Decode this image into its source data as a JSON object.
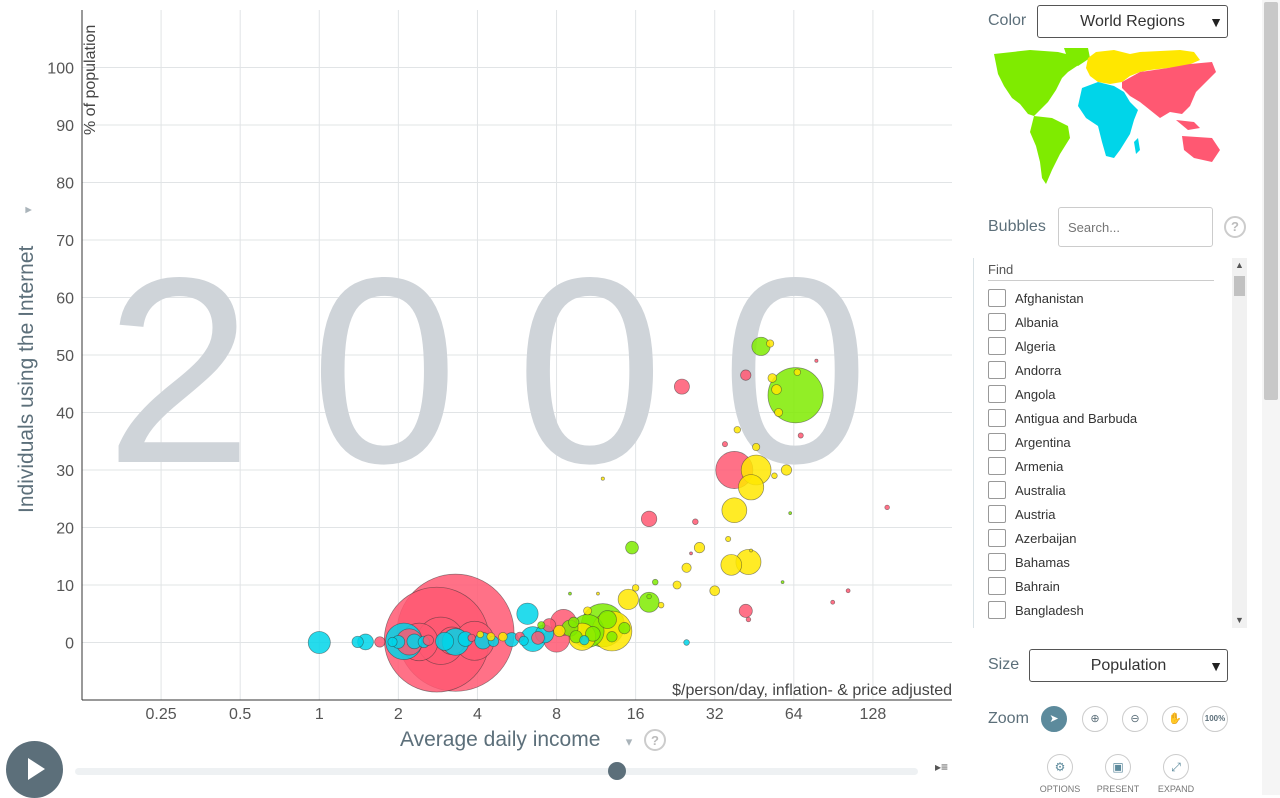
{
  "chart_data": {
    "type": "scatter",
    "year": "2000",
    "ylabel": "Individuals using the Internet",
    "yunit": "% of population",
    "xlabel": "Average daily income",
    "xunit": "$/person/day, inflation- & price adjusted",
    "xscale": "log2",
    "xlim": [
      0.125,
      256
    ],
    "ylim": [
      -10,
      110
    ],
    "xticks": [
      0.25,
      0.5,
      1,
      2,
      4,
      8,
      16,
      32,
      64,
      128
    ],
    "xticklabels": [
      "0.25",
      "0.5",
      "1",
      "2",
      "4",
      "8",
      "16",
      "32",
      "64",
      "128"
    ],
    "yticks": [
      0,
      10,
      20,
      30,
      40,
      50,
      60,
      70,
      80,
      90,
      100
    ],
    "grid": true,
    "size_by": "Population",
    "color_by": "World Regions",
    "colors": {
      "africa": "#00d5e9",
      "americas": "#7feb00",
      "asia": "#ff5872",
      "europe": "#ffe700"
    },
    "points": [
      {
        "x": 3.3,
        "y": 1.7,
        "pop": 1260,
        "region": "asia"
      },
      {
        "x": 2.8,
        "y": 0.5,
        "pop": 1010,
        "region": "asia"
      },
      {
        "x": 65,
        "y": 43,
        "pop": 280,
        "region": "americas"
      },
      {
        "x": 2.9,
        "y": 0.3,
        "pop": 205,
        "region": "asia"
      },
      {
        "x": 12,
        "y": 3,
        "pop": 172,
        "region": "americas"
      },
      {
        "x": 13,
        "y": 2,
        "pop": 146,
        "region": "europe"
      },
      {
        "x": 3.9,
        "y": 0.3,
        "pop": 140,
        "region": "asia"
      },
      {
        "x": 2.4,
        "y": 0.1,
        "pop": 130,
        "region": "asia"
      },
      {
        "x": 38,
        "y": 30,
        "pop": 127,
        "region": "asia"
      },
      {
        "x": 2.1,
        "y": 0.2,
        "pop": 123,
        "region": "africa"
      },
      {
        "x": 10.5,
        "y": 2,
        "pop": 100,
        "region": "americas"
      },
      {
        "x": 46,
        "y": 30,
        "pop": 82,
        "region": "europe"
      },
      {
        "x": 3.2,
        "y": 0.3,
        "pop": 70,
        "region": "asia"
      },
      {
        "x": 10,
        "y": 1,
        "pop": 68,
        "region": "europe"
      },
      {
        "x": 3.3,
        "y": 0.1,
        "pop": 66,
        "region": "africa"
      },
      {
        "x": 2.2,
        "y": 0.1,
        "pop": 63,
        "region": "asia"
      },
      {
        "x": 8,
        "y": 0.6,
        "pop": 63,
        "region": "asia"
      },
      {
        "x": 8.5,
        "y": 3.5,
        "pop": 62,
        "region": "asia"
      },
      {
        "x": 6.5,
        "y": 0.6,
        "pop": 57,
        "region": "africa"
      },
      {
        "x": 44,
        "y": 27,
        "pop": 59,
        "region": "europe"
      },
      {
        "x": 43,
        "y": 14,
        "pop": 58,
        "region": "europe"
      },
      {
        "x": 38,
        "y": 23,
        "pop": 57,
        "region": "europe"
      },
      {
        "x": 1,
        "y": 0,
        "pop": 45,
        "region": "africa"
      },
      {
        "x": 6.2,
        "y": 5,
        "pop": 42,
        "region": "africa"
      },
      {
        "x": 37,
        "y": 13.5,
        "pop": 40,
        "region": "europe"
      },
      {
        "x": 18,
        "y": 7,
        "pop": 37,
        "region": "americas"
      },
      {
        "x": 15,
        "y": 7.5,
        "pop": 38,
        "region": "europe"
      },
      {
        "x": 24,
        "y": 44.5,
        "pop": 21,
        "region": "asia"
      },
      {
        "x": 48,
        "y": 51.5,
        "pop": 31,
        "region": "americas"
      },
      {
        "x": 18,
        "y": 21.5,
        "pop": 22,
        "region": "asia"
      },
      {
        "x": 1.5,
        "y": 0.1,
        "pop": 23,
        "region": "africa"
      },
      {
        "x": 9,
        "y": 2.5,
        "pop": 24,
        "region": "americas"
      },
      {
        "x": 15.5,
        "y": 16.5,
        "pop": 15,
        "region": "americas"
      },
      {
        "x": 42,
        "y": 5.5,
        "pop": 16,
        "region": "asia"
      },
      {
        "x": 55,
        "y": 44,
        "pop": 9,
        "region": "europe"
      },
      {
        "x": 42,
        "y": 46.5,
        "pop": 10,
        "region": "asia"
      },
      {
        "x": 7.5,
        "y": 3,
        "pop": 16,
        "region": "asia"
      },
      {
        "x": 28,
        "y": 16.5,
        "pop": 10,
        "region": "europe"
      },
      {
        "x": 25,
        "y": 13,
        "pop": 8,
        "region": "europe"
      },
      {
        "x": 32,
        "y": 9,
        "pop": 9,
        "region": "europe"
      },
      {
        "x": 53,
        "y": 46,
        "pop": 7,
        "region": "europe"
      },
      {
        "x": 52,
        "y": 52,
        "pop": 5,
        "region": "europe"
      },
      {
        "x": 66,
        "y": 47,
        "pop": 4,
        "region": "europe"
      },
      {
        "x": 56,
        "y": 40,
        "pop": 6,
        "region": "europe"
      },
      {
        "x": 60,
        "y": 30,
        "pop": 10,
        "region": "europe"
      },
      {
        "x": 35,
        "y": 34.5,
        "pop": 2.5,
        "region": "asia"
      },
      {
        "x": 39,
        "y": 37,
        "pop": 4,
        "region": "europe"
      },
      {
        "x": 46,
        "y": 34,
        "pop": 5,
        "region": "europe"
      },
      {
        "x": 54,
        "y": 29,
        "pop": 3,
        "region": "europe"
      },
      {
        "x": 27,
        "y": 21,
        "pop": 3,
        "region": "asia"
      },
      {
        "x": 36,
        "y": 18,
        "pop": 2.5,
        "region": "europe"
      },
      {
        "x": 68,
        "y": 36,
        "pop": 2.5,
        "region": "asia"
      },
      {
        "x": 78,
        "y": 49,
        "pop": 1,
        "region": "asia"
      },
      {
        "x": 145,
        "y": 23.5,
        "pop": 2,
        "region": "asia"
      },
      {
        "x": 103,
        "y": 9,
        "pop": 1.5,
        "region": "asia"
      },
      {
        "x": 90,
        "y": 7,
        "pop": 1.5,
        "region": "asia"
      },
      {
        "x": 43,
        "y": 4,
        "pop": 2,
        "region": "asia"
      },
      {
        "x": 25,
        "y": 0,
        "pop": 3,
        "region": "africa"
      },
      {
        "x": 23,
        "y": 10,
        "pop": 6,
        "region": "europe"
      },
      {
        "x": 20,
        "y": 6.5,
        "pop": 3,
        "region": "europe"
      },
      {
        "x": 16,
        "y": 9.5,
        "pop": 4,
        "region": "europe"
      },
      {
        "x": 19,
        "y": 10.5,
        "pop": 3,
        "region": "americas"
      },
      {
        "x": 12,
        "y": 28.5,
        "pop": 1,
        "region": "europe"
      },
      {
        "x": 11.5,
        "y": 8.5,
        "pop": 0.5,
        "region": "europe"
      },
      {
        "x": 3.6,
        "y": 0.6,
        "pop": 20,
        "region": "africa"
      },
      {
        "x": 3,
        "y": 0.2,
        "pop": 30,
        "region": "africa"
      },
      {
        "x": 2.3,
        "y": 0.2,
        "pop": 20,
        "region": "africa"
      },
      {
        "x": 4.2,
        "y": 0.3,
        "pop": 25,
        "region": "africa"
      },
      {
        "x": 5.4,
        "y": 0.5,
        "pop": 18,
        "region": "africa"
      },
      {
        "x": 7.2,
        "y": 1.5,
        "pop": 30,
        "region": "africa"
      },
      {
        "x": 1.7,
        "y": 0.1,
        "pop": 10,
        "region": "asia"
      },
      {
        "x": 1.9,
        "y": 0.1,
        "pop": 8,
        "region": "africa"
      },
      {
        "x": 2.6,
        "y": 0.4,
        "pop": 10,
        "region": "asia"
      },
      {
        "x": 4.5,
        "y": 1,
        "pop": 6,
        "region": "europe"
      },
      {
        "x": 5,
        "y": 1,
        "pop": 7,
        "region": "europe"
      },
      {
        "x": 5.8,
        "y": 1,
        "pop": 8,
        "region": "asia"
      },
      {
        "x": 6.8,
        "y": 0.8,
        "pop": 15,
        "region": "asia"
      },
      {
        "x": 9.5,
        "y": 1,
        "pop": 14,
        "region": "americas"
      },
      {
        "x": 11,
        "y": 1.5,
        "pop": 20,
        "region": "americas"
      },
      {
        "x": 12.5,
        "y": 4,
        "pop": 30,
        "region": "americas"
      },
      {
        "x": 13,
        "y": 1,
        "pop": 10,
        "region": "americas"
      },
      {
        "x": 14.5,
        "y": 2.5,
        "pop": 12,
        "region": "americas"
      },
      {
        "x": 10.5,
        "y": 5.5,
        "pop": 6,
        "region": "europe"
      },
      {
        "x": 8.2,
        "y": 2,
        "pop": 12,
        "region": "europe"
      },
      {
        "x": 7,
        "y": 3,
        "pop": 5,
        "region": "americas"
      },
      {
        "x": 9.3,
        "y": 3.5,
        "pop": 10,
        "region": "americas"
      },
      {
        "x": 10.2,
        "y": 0.4,
        "pop": 8,
        "region": "africa"
      },
      {
        "x": 6,
        "y": 0.3,
        "pop": 8,
        "region": "africa"
      },
      {
        "x": 4.6,
        "y": 0.2,
        "pop": 10,
        "region": "africa"
      },
      {
        "x": 2,
        "y": 0.1,
        "pop": 15,
        "region": "africa"
      },
      {
        "x": 2.5,
        "y": 0.1,
        "pop": 12,
        "region": "africa"
      },
      {
        "x": 1.4,
        "y": 0.1,
        "pop": 12,
        "region": "africa"
      },
      {
        "x": 3.8,
        "y": 0.8,
        "pop": 5,
        "region": "asia"
      },
      {
        "x": 4.1,
        "y": 1.4,
        "pop": 4,
        "region": "europe"
      },
      {
        "x": 18,
        "y": 8,
        "pop": 2,
        "region": "americas"
      },
      {
        "x": 9,
        "y": 8.5,
        "pop": 0.6,
        "region": "americas"
      },
      {
        "x": 26,
        "y": 15.5,
        "pop": 0.5,
        "region": "asia"
      },
      {
        "x": 44,
        "y": 16,
        "pop": 0.5,
        "region": "europe"
      },
      {
        "x": 58,
        "y": 10.5,
        "pop": 0.3,
        "region": "americas"
      },
      {
        "x": 62,
        "y": 22.5,
        "pop": 0.3,
        "region": "americas"
      }
    ]
  },
  "controls": {
    "color_label": "Color",
    "color_value": "World Regions",
    "bubbles_label": "Bubbles",
    "search_placeholder": "Search...",
    "help": "?",
    "find_label": "Find",
    "size_label": "Size",
    "size_value": "Population",
    "zoom_label": "Zoom",
    "zoom_100": "100%",
    "options_label": "OPTIONS",
    "present_label": "PRESENT",
    "expand_label": "EXPAND",
    "arrow": "▾",
    "select_arrow": "▼"
  },
  "countries": [
    "Afghanistan",
    "Albania",
    "Algeria",
    "Andorra",
    "Angola",
    "Antigua and Barbuda",
    "Argentina",
    "Armenia",
    "Australia",
    "Austria",
    "Azerbaijan",
    "Bahamas",
    "Bahrain",
    "Bangladesh"
  ]
}
